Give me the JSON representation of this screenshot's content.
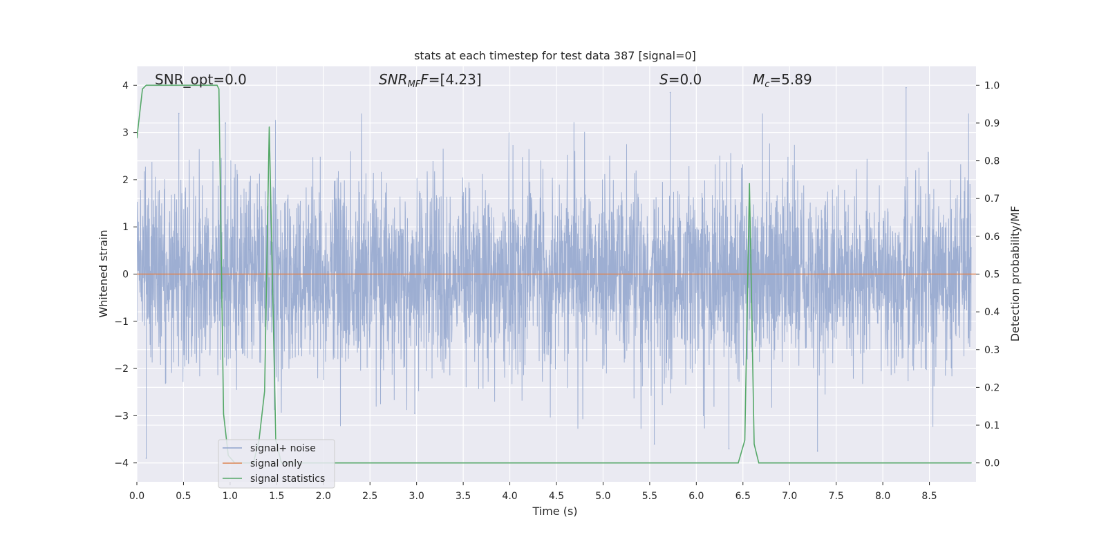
{
  "chart_data": {
    "type": "line",
    "title": "stats at each timestep for test data 387 [signal=0]",
    "xlabel": "Time (s)",
    "ylabel_left": "Whitened strain",
    "ylabel_right": "Detection probability/MF",
    "xlim": [
      0.0,
      9.0
    ],
    "ylim_left": [
      -4.4,
      4.4
    ],
    "ylim_right": [
      -0.05,
      1.05
    ],
    "x_ticks": [
      "0.0",
      "0.5",
      "1.0",
      "1.5",
      "2.0",
      "2.5",
      "3.0",
      "3.5",
      "4.0",
      "4.5",
      "5.0",
      "5.5",
      "6.0",
      "6.5",
      "7.0",
      "7.5",
      "8.0",
      "8.5"
    ],
    "x_tick_values": [
      0.0,
      0.5,
      1.0,
      1.5,
      2.0,
      2.5,
      3.0,
      3.5,
      4.0,
      4.5,
      5.0,
      5.5,
      6.0,
      6.5,
      7.0,
      7.5,
      8.0,
      8.5
    ],
    "y_left_ticks": [
      "4",
      "3",
      "2",
      "1",
      "0",
      "−1",
      "−2",
      "−3",
      "−4"
    ],
    "y_left_tick_values": [
      4,
      3,
      2,
      1,
      0,
      -1,
      -2,
      -3,
      -4
    ],
    "y_right_ticks": [
      "1.0",
      "0.9",
      "0.8",
      "0.7",
      "0.6",
      "0.5",
      "0.4",
      "0.3",
      "0.2",
      "0.1",
      "0.0"
    ],
    "y_right_tick_values": [
      1.0,
      0.9,
      0.8,
      0.7,
      0.6,
      0.5,
      0.4,
      0.3,
      0.2,
      0.1,
      0.0
    ],
    "grid": true,
    "legend_position": "lower-left",
    "annotations": {
      "snr_opt": "SNR_opt=0.0",
      "snr_mf_main": "SNR",
      "snr_mf_sub": "MF",
      "snr_mf_rest": "=[4.23]",
      "s_main": "S",
      "s_rest": "=0.0",
      "mc_main": "M",
      "mc_sub": "c",
      "mc_rest": "=5.89"
    },
    "series": [
      {
        "name": "signal+ noise",
        "color": "#8fa3cc",
        "axis": "left",
        "style": "dense noise, approx. normal, sigma ~1.0",
        "notable_peaks": [
          [
            0.1,
            -3.9
          ],
          [
            0.45,
            3.4
          ],
          [
            0.95,
            3.2
          ],
          [
            2.98,
            -2.95
          ],
          [
            5.55,
            -3.6
          ],
          [
            5.72,
            3.85
          ],
          [
            6.35,
            -3.7
          ],
          [
            7.3,
            -3.75
          ],
          [
            8.25,
            3.95
          ]
        ]
      },
      {
        "name": "signal only",
        "color": "#dd8452",
        "axis": "left",
        "x": [
          0.0,
          9.0
        ],
        "y": [
          0.0,
          0.0
        ]
      },
      {
        "name": "signal statistics",
        "color": "#55a868",
        "axis": "right",
        "x": [
          0.0,
          0.06,
          0.1,
          0.2,
          0.3,
          0.4,
          0.5,
          0.6,
          0.7,
          0.8,
          0.86,
          0.88,
          0.93,
          0.98,
          1.05,
          1.15,
          1.25,
          1.31,
          1.37,
          1.42,
          1.49,
          1.55,
          1.65,
          2.0,
          3.0,
          4.0,
          5.0,
          6.0,
          6.45,
          6.52,
          6.57,
          6.62,
          6.67,
          7.0,
          8.0,
          8.95
        ],
        "y": [
          0.86,
          0.99,
          1.0,
          1.0,
          1.0,
          1.0,
          1.0,
          1.0,
          1.0,
          1.0,
          1.0,
          0.99,
          0.13,
          0.02,
          0.0,
          0.0,
          0.0,
          0.06,
          0.19,
          0.89,
          0.06,
          0.0,
          0.0,
          0.0,
          0.0,
          0.0,
          0.0,
          0.0,
          0.0,
          0.06,
          0.74,
          0.05,
          0.0,
          0.0,
          0.0,
          0.0
        ]
      }
    ]
  }
}
